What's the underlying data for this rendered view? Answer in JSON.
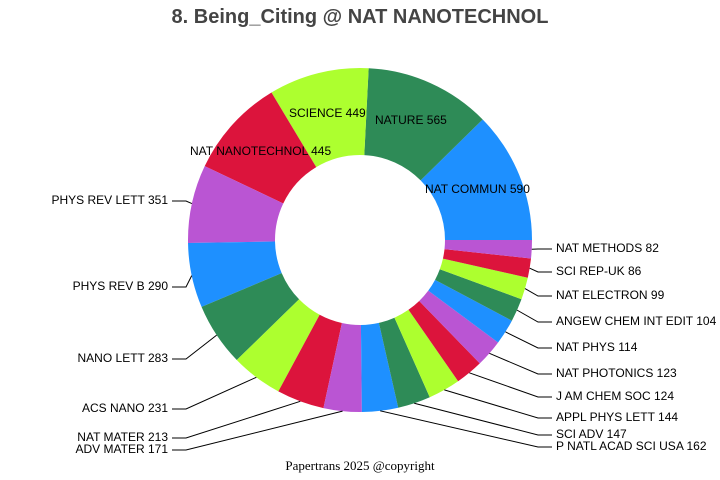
{
  "chart_data": {
    "type": "pie",
    "style": "donut",
    "title": "8. Being_Citing @ NAT NANOTECHNOL",
    "footer": "Papertrans 2025 @copyright",
    "direction": "counter-clockwise",
    "start": "3 o'clock",
    "slices": [
      {
        "label": "NAT COMMUN",
        "value": 590,
        "color": "#1E90FF"
      },
      {
        "label": "NATURE",
        "value": 565,
        "color": "#2E8B57"
      },
      {
        "label": "SCIENCE",
        "value": 449,
        "color": "#ADFF2F"
      },
      {
        "label": "NAT NANOTECHNOL",
        "value": 445,
        "color": "#DC143C"
      },
      {
        "label": "PHYS REV LETT",
        "value": 351,
        "color": "#BA55D3"
      },
      {
        "label": "PHYS REV B",
        "value": 290,
        "color": "#1E90FF"
      },
      {
        "label": "NANO LETT",
        "value": 283,
        "color": "#2E8B57"
      },
      {
        "label": "ACS NANO",
        "value": 231,
        "color": "#ADFF2F"
      },
      {
        "label": "NAT MATER",
        "value": 213,
        "color": "#DC143C"
      },
      {
        "label": "ADV MATER",
        "value": 171,
        "color": "#BA55D3"
      },
      {
        "label": "P NATL ACAD SCI USA",
        "value": 162,
        "color": "#1E90FF"
      },
      {
        "label": "SCI ADV",
        "value": 147,
        "color": "#2E8B57"
      },
      {
        "label": "APPL PHYS LETT",
        "value": 144,
        "color": "#ADFF2F"
      },
      {
        "label": "J AM CHEM SOC",
        "value": 124,
        "color": "#DC143C"
      },
      {
        "label": "NAT PHOTONICS",
        "value": 123,
        "color": "#BA55D3"
      },
      {
        "label": "NAT PHYS",
        "value": 114,
        "color": "#1E90FF"
      },
      {
        "label": "ANGEW CHEM INT EDIT",
        "value": 104,
        "color": "#2E8B57"
      },
      {
        "label": "NAT ELECTRON",
        "value": 99,
        "color": "#ADFF2F"
      },
      {
        "label": "SCI REP-UK",
        "value": 86,
        "color": "#DC143C"
      },
      {
        "label": "NAT METHODS",
        "value": 82,
        "color": "#BA55D3"
      }
    ]
  }
}
